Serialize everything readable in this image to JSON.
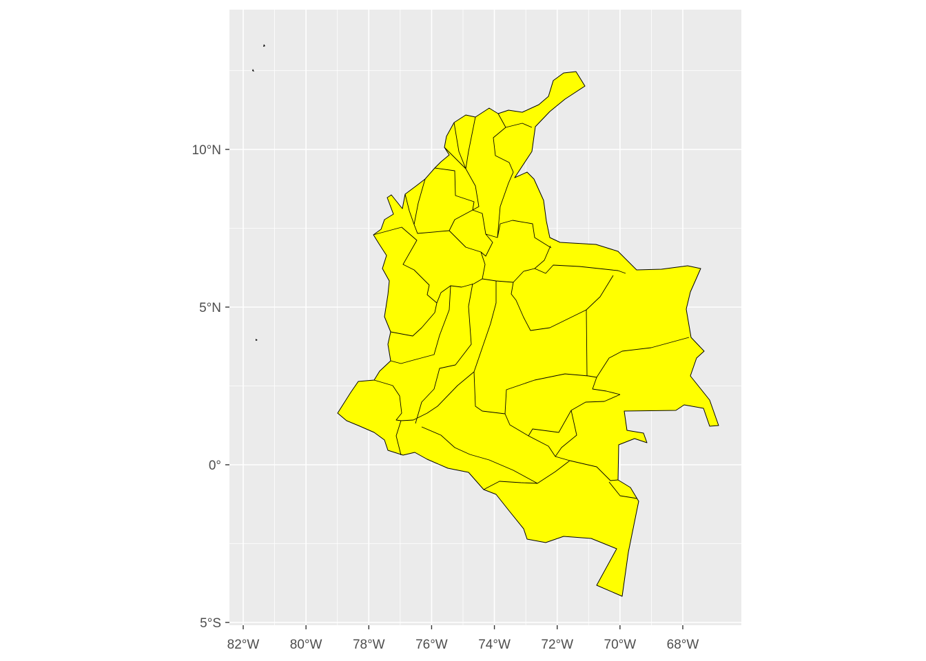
{
  "map": {
    "panel_background": "#ebebeb",
    "fill_color": "#ffff00",
    "border_color": "#000000",
    "grid": "on",
    "x_ticks": [
      {
        "value": -82,
        "label": "82°W"
      },
      {
        "value": -80,
        "label": "80°W"
      },
      {
        "value": -78,
        "label": "78°W"
      },
      {
        "value": -76,
        "label": "76°W"
      },
      {
        "value": -74,
        "label": "74°W"
      },
      {
        "value": -72,
        "label": "72°W"
      },
      {
        "value": -70,
        "label": "70°W"
      },
      {
        "value": -68,
        "label": "68°W"
      }
    ],
    "y_ticks": [
      {
        "value": -5,
        "label": "5°S"
      },
      {
        "value": 0,
        "label": "0°"
      },
      {
        "value": 5,
        "label": "5°N"
      },
      {
        "value": 10,
        "label": "10°N"
      }
    ],
    "xlim": [
      -82.4,
      -66.4
    ],
    "ylim": [
      -5.2,
      14.1
    ]
  }
}
